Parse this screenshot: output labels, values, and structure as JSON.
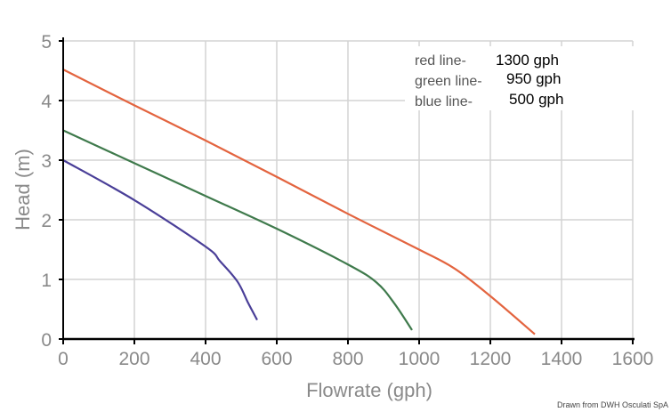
{
  "chart_data": {
    "type": "line",
    "title": "",
    "xlabel": "Flowrate (gph)",
    "ylabel": "Head (m)",
    "xlim": [
      0,
      1600
    ],
    "ylim": [
      0,
      5
    ],
    "xticks": [
      "0",
      "200",
      "400",
      "600",
      "800",
      "1000",
      "1200",
      "1400",
      "1600"
    ],
    "yticks": [
      "0",
      "1",
      "2",
      "3",
      "4",
      "5"
    ],
    "grid": true,
    "legend_position": "top-right",
    "series": [
      {
        "name": "red line",
        "legend_label": "red line-",
        "legend_value": "1300 gph",
        "color": "#e3643f",
        "x": [
          0,
          200,
          400,
          600,
          800,
          1000,
          1100,
          1200,
          1325
        ],
        "y": [
          4.52,
          3.92,
          3.33,
          2.72,
          2.1,
          1.5,
          1.18,
          0.72,
          0.08
        ]
      },
      {
        "name": "green line",
        "legend_label": "green line-",
        "legend_value": "950 gph",
        "color": "#3f7a4c",
        "x": [
          0,
          200,
          400,
          600,
          800,
          880,
          930,
          980
        ],
        "y": [
          3.5,
          2.95,
          2.4,
          1.85,
          1.25,
          0.95,
          0.6,
          0.15
        ]
      },
      {
        "name": "blue line",
        "legend_label": "blue line-",
        "legend_value": "500 gph",
        "color": "#4a3f98",
        "x": [
          0,
          200,
          400,
          440,
          490,
          520,
          545
        ],
        "y": [
          3.0,
          2.33,
          1.55,
          1.31,
          0.96,
          0.6,
          0.32
        ]
      }
    ],
    "credit": "Drawn from DWH Osculati SpA"
  }
}
